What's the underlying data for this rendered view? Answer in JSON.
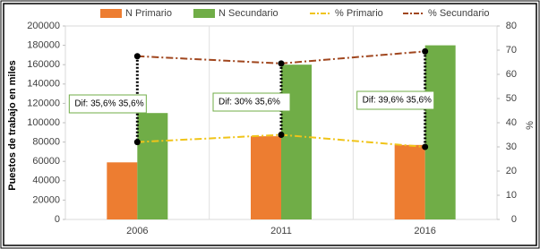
{
  "chart_data": {
    "type": "bar",
    "y_label": "Puestos de trabajo en miles",
    "y2_label": "%",
    "categories": [
      "2006",
      "2011",
      "2016"
    ],
    "series": [
      {
        "name": "N Primario",
        "type": "bar",
        "color": "#ed7d31",
        "values": [
          59000,
          86000,
          77000
        ]
      },
      {
        "name": "N Secundario",
        "type": "bar",
        "color": "#70ad47",
        "values": [
          110000,
          160000,
          180000
        ]
      },
      {
        "name": "% Primario",
        "type": "line",
        "axis": "y2",
        "color": "#f0c419",
        "values": [
          32,
          35,
          30
        ]
      },
      {
        "name": "% Secundario",
        "type": "line",
        "axis": "y2",
        "color": "#a0461e",
        "values": [
          67.5,
          64.5,
          69.5
        ]
      }
    ],
    "annotations": [
      "Dif: 35,6% 35,6%",
      "Dif: 30% 35,6%",
      "Dif: 39,6% 35,6%"
    ],
    "ylim": [
      0,
      200000
    ],
    "yticks": [
      0,
      20000,
      40000,
      60000,
      80000,
      100000,
      120000,
      140000,
      160000,
      180000,
      200000
    ],
    "y2lim": [
      0,
      80
    ],
    "y2ticks": [
      0,
      10,
      20,
      30,
      40,
      50,
      60,
      70,
      80
    ],
    "grid": false
  }
}
